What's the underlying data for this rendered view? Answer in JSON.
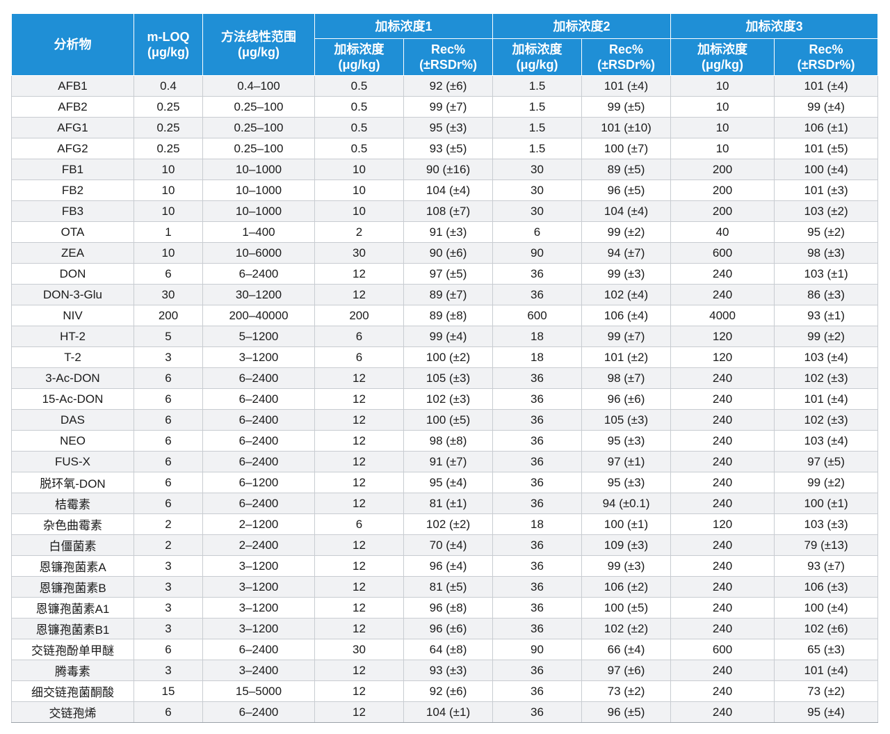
{
  "colors": {
    "header_bg": "#1f8fd6",
    "header_text": "#ffffff",
    "row_alt": "#f1f2f4",
    "border": "#c8ccd1"
  },
  "header": {
    "analyte": "分析物",
    "mloq": "m-LOQ\n(μg/kg)",
    "linear_range": "方法线性范围\n(μg/kg)",
    "group1": "加标浓度1",
    "group2": "加标浓度2",
    "group3": "加标浓度3",
    "spike_conc": "加标浓度\n(μg/kg)",
    "rec": "Rec%\n(±RSDr%)"
  },
  "rows": [
    [
      "AFB1",
      "0.4",
      "0.4–100",
      "0.5",
      "92 (±6)",
      "1.5",
      "101 (±4)",
      "10",
      "101 (±4)"
    ],
    [
      "AFB2",
      "0.25",
      "0.25–100",
      "0.5",
      "99 (±7)",
      "1.5",
      "99 (±5)",
      "10",
      "99 (±4)"
    ],
    [
      "AFG1",
      "0.25",
      "0.25–100",
      "0.5",
      "95 (±3)",
      "1.5",
      "101 (±10)",
      "10",
      "106 (±1)"
    ],
    [
      "AFG2",
      "0.25",
      "0.25–100",
      "0.5",
      "93 (±5)",
      "1.5",
      "100 (±7)",
      "10",
      "101 (±5)"
    ],
    [
      "FB1",
      "10",
      "10–1000",
      "10",
      "90 (±16)",
      "30",
      "89 (±5)",
      "200",
      "100 (±4)"
    ],
    [
      "FB2",
      "10",
      "10–1000",
      "10",
      "104 (±4)",
      "30",
      "96 (±5)",
      "200",
      "101 (±3)"
    ],
    [
      "FB3",
      "10",
      "10–1000",
      "10",
      "108 (±7)",
      "30",
      "104 (±4)",
      "200",
      "103 (±2)"
    ],
    [
      "OTA",
      "1",
      "1–400",
      "2",
      "91 (±3)",
      "6",
      "99 (±2)",
      "40",
      "95 (±2)"
    ],
    [
      "ZEA",
      "10",
      "10–6000",
      "30",
      "90 (±6)",
      "90",
      "94 (±7)",
      "600",
      "98 (±3)"
    ],
    [
      "DON",
      "6",
      "6–2400",
      "12",
      "97 (±5)",
      "36",
      "99 (±3)",
      "240",
      "103 (±1)"
    ],
    [
      "DON-3-Glu",
      "30",
      "30–1200",
      "12",
      "89 (±7)",
      "36",
      "102 (±4)",
      "240",
      "86 (±3)"
    ],
    [
      "NIV",
      "200",
      "200–40000",
      "200",
      "89 (±8)",
      "600",
      "106 (±4)",
      "4000",
      "93 (±1)"
    ],
    [
      "HT-2",
      "5",
      "5–1200",
      "6",
      "99 (±4)",
      "18",
      "99 (±7)",
      "120",
      "99 (±2)"
    ],
    [
      "T-2",
      "3",
      "3–1200",
      "6",
      "100 (±2)",
      "18",
      "101 (±2)",
      "120",
      "103 (±4)"
    ],
    [
      "3-Ac-DON",
      "6",
      "6–2400",
      "12",
      "105 (±3)",
      "36",
      "98 (±7)",
      "240",
      "102 (±3)"
    ],
    [
      "15-Ac-DON",
      "6",
      "6–2400",
      "12",
      "102 (±3)",
      "36",
      "96 (±6)",
      "240",
      "101 (±4)"
    ],
    [
      "DAS",
      "6",
      "6–2400",
      "12",
      "100 (±5)",
      "36",
      "105 (±3)",
      "240",
      "102 (±3)"
    ],
    [
      "NEO",
      "6",
      "6–2400",
      "12",
      "98 (±8)",
      "36",
      "95 (±3)",
      "240",
      "103 (±4)"
    ],
    [
      "FUS-X",
      "6",
      "6–2400",
      "12",
      "91 (±7)",
      "36",
      "97 (±1)",
      "240",
      "97 (±5)"
    ],
    [
      "脱环氧-DON",
      "6",
      "6–1200",
      "12",
      "95 (±4)",
      "36",
      "95 (±3)",
      "240",
      "99 (±2)"
    ],
    [
      "桔霉素",
      "6",
      "6–2400",
      "12",
      "81 (±1)",
      "36",
      "94 (±0.1)",
      "240",
      "100 (±1)"
    ],
    [
      "杂色曲霉素",
      "2",
      "2–1200",
      "6",
      "102 (±2)",
      "18",
      "100 (±1)",
      "120",
      "103 (±3)"
    ],
    [
      "白僵菌素",
      "2",
      "2–2400",
      "12",
      "70 (±4)",
      "36",
      "109 (±3)",
      "240",
      "79 (±13)"
    ],
    [
      "恩镰孢菌素A",
      "3",
      "3–1200",
      "12",
      "96 (±4)",
      "36",
      "99 (±3)",
      "240",
      "93 (±7)"
    ],
    [
      "恩镰孢菌素B",
      "3",
      "3–1200",
      "12",
      "81 (±5)",
      "36",
      "106 (±2)",
      "240",
      "106 (±3)"
    ],
    [
      "恩镰孢菌素A1",
      "3",
      "3–1200",
      "12",
      "96 (±8)",
      "36",
      "100 (±5)",
      "240",
      "100 (±4)"
    ],
    [
      "恩镰孢菌素B1",
      "3",
      "3–1200",
      "12",
      "96 (±6)",
      "36",
      "102 (±2)",
      "240",
      "102 (±6)"
    ],
    [
      "交链孢酚单甲醚",
      "6",
      "6–2400",
      "30",
      "64 (±8)",
      "90",
      "66 (±4)",
      "600",
      "65 (±3)"
    ],
    [
      "腾毒素",
      "3",
      "3–2400",
      "12",
      "93 (±3)",
      "36",
      "97 (±6)",
      "240",
      "101 (±4)"
    ],
    [
      "细交链孢菌酮酸",
      "15",
      "15–5000",
      "12",
      "92 (±6)",
      "36",
      "73 (±2)",
      "240",
      "73 (±2)"
    ],
    [
      "交链孢烯",
      "6",
      "6–2400",
      "12",
      "104 (±1)",
      "36",
      "96 (±5)",
      "240",
      "95 (±4)"
    ]
  ]
}
